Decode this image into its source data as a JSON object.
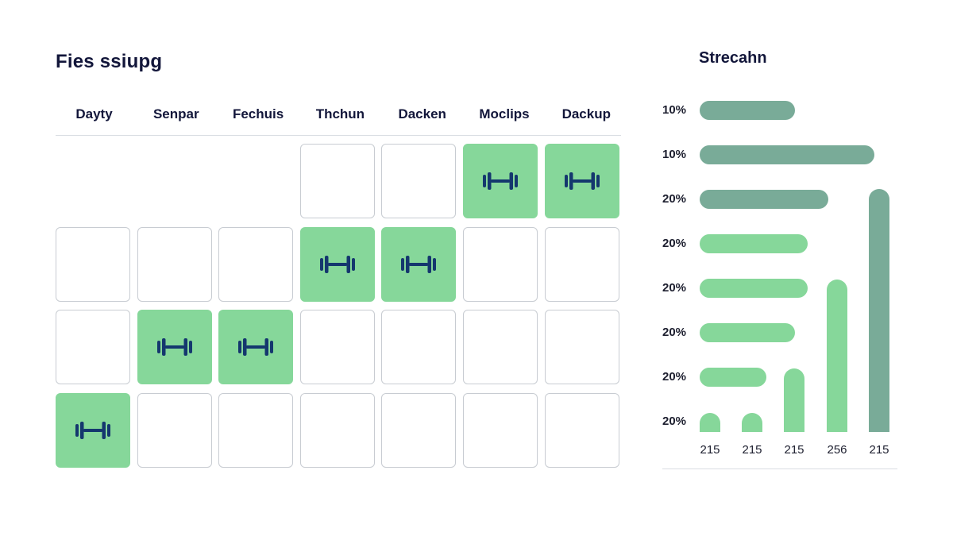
{
  "schedule": {
    "title": "Fies ssiupg",
    "columns": [
      "Dayty",
      "Senpar",
      "Fechuis",
      "Thchun",
      "Dacken",
      "Moclips",
      "Dackup"
    ],
    "rows": [
      [
        null,
        null,
        null,
        false,
        false,
        true,
        true
      ],
      [
        false,
        false,
        false,
        true,
        true,
        false,
        false
      ],
      [
        false,
        true,
        true,
        false,
        false,
        false,
        false
      ],
      [
        true,
        false,
        false,
        false,
        false,
        false,
        false
      ]
    ],
    "active_color": "#86d79a",
    "icon": "dumbbell-icon"
  },
  "side": {
    "title": "Strecahn"
  },
  "chart_data": {
    "type": "bar",
    "title": "Strecahn",
    "horizontal": {
      "labels": [
        "10%",
        "10%",
        "20%",
        "20%",
        "20%",
        "20%",
        "20%",
        "20%"
      ],
      "values": [
        120,
        220,
        162,
        136,
        136,
        120,
        84,
        0
      ],
      "colors": [
        "#79ab98",
        "#79ab98",
        "#79ab98",
        "#86d79a",
        "#86d79a",
        "#86d79a",
        "#86d79a",
        "#86d79a"
      ]
    },
    "vertical": {
      "categories": [
        "215",
        "215",
        "215",
        "256",
        "215"
      ],
      "values": [
        24,
        24,
        80,
        192,
        306
      ],
      "colors": [
        "#86d79a",
        "#86d79a",
        "#86d79a",
        "#86d79a",
        "#79ab98"
      ]
    }
  }
}
